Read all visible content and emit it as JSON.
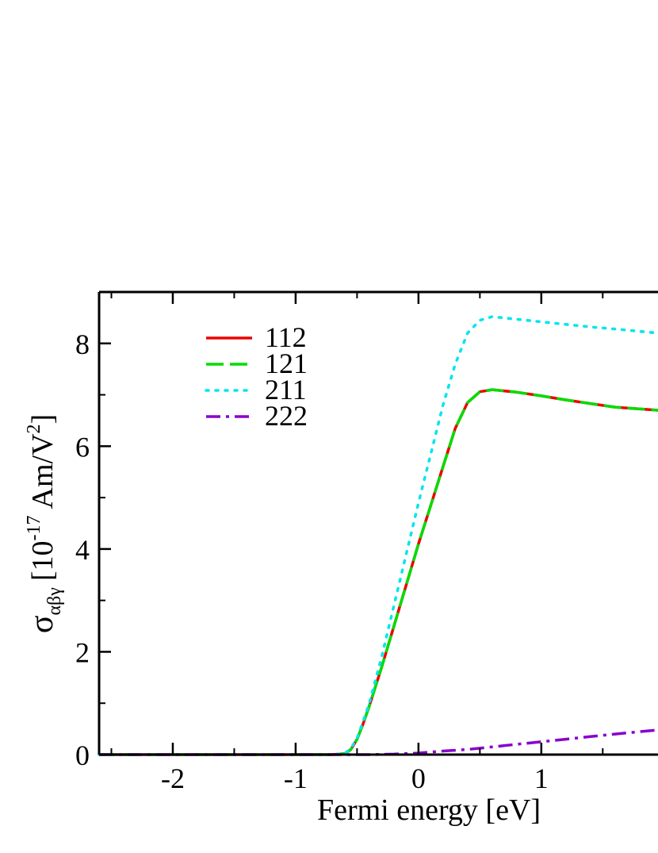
{
  "chart_data": {
    "type": "line",
    "xlabel": "Fermi energy [eV]",
    "ylabel": {
      "symbol": "σ",
      "subscript": "αβγ",
      "text": "[10",
      "exponent": "-17",
      "unit": "Am/V",
      "unit_exponent": "2",
      "close": "]"
    },
    "xlim": [
      -2.6,
      1.95
    ],
    "ylim": [
      0,
      9
    ],
    "xticks": [
      -2,
      -1,
      0,
      1
    ],
    "xtick_labels": [
      "-2",
      "-1",
      "0",
      "1"
    ],
    "yticks": [
      0,
      2,
      4,
      6,
      8
    ],
    "ytick_labels": [
      "0",
      "2",
      "4",
      "6",
      "8"
    ],
    "legend_position": "top-left",
    "series": [
      {
        "name": "112",
        "color": "#ee0000",
        "style": "solid",
        "points": [
          [
            -2.6,
            0
          ],
          [
            -0.7,
            0
          ],
          [
            -0.6,
            0.02
          ],
          [
            -0.55,
            0.1
          ],
          [
            -0.5,
            0.3
          ],
          [
            -0.45,
            0.6
          ],
          [
            -0.4,
            0.95
          ],
          [
            -0.3,
            1.7
          ],
          [
            -0.2,
            2.5
          ],
          [
            -0.1,
            3.3
          ],
          [
            0.0,
            4.1
          ],
          [
            0.1,
            4.85
          ],
          [
            0.2,
            5.6
          ],
          [
            0.3,
            6.35
          ],
          [
            0.4,
            6.85
          ],
          [
            0.5,
            7.06
          ],
          [
            0.6,
            7.1
          ],
          [
            0.8,
            7.05
          ],
          [
            1.0,
            6.98
          ],
          [
            1.2,
            6.9
          ],
          [
            1.4,
            6.83
          ],
          [
            1.6,
            6.76
          ],
          [
            1.95,
            6.7
          ]
        ]
      },
      {
        "name": "121",
        "color": "#00dd00",
        "style": "dashed",
        "points": [
          [
            -2.6,
            0
          ],
          [
            -0.7,
            0
          ],
          [
            -0.6,
            0.02
          ],
          [
            -0.55,
            0.1
          ],
          [
            -0.5,
            0.3
          ],
          [
            -0.45,
            0.6
          ],
          [
            -0.4,
            0.95
          ],
          [
            -0.3,
            1.7
          ],
          [
            -0.2,
            2.5
          ],
          [
            -0.1,
            3.3
          ],
          [
            0.0,
            4.1
          ],
          [
            0.1,
            4.85
          ],
          [
            0.2,
            5.6
          ],
          [
            0.3,
            6.35
          ],
          [
            0.4,
            6.85
          ],
          [
            0.5,
            7.06
          ],
          [
            0.6,
            7.1
          ],
          [
            0.8,
            7.05
          ],
          [
            1.0,
            6.98
          ],
          [
            1.2,
            6.9
          ],
          [
            1.4,
            6.83
          ],
          [
            1.6,
            6.76
          ],
          [
            1.95,
            6.7
          ]
        ]
      },
      {
        "name": "211",
        "color": "#00e5ee",
        "style": "dotted",
        "points": [
          [
            -2.6,
            0
          ],
          [
            -0.7,
            0
          ],
          [
            -0.6,
            0.02
          ],
          [
            -0.55,
            0.12
          ],
          [
            -0.5,
            0.32
          ],
          [
            -0.45,
            0.65
          ],
          [
            -0.4,
            1.0
          ],
          [
            -0.3,
            1.9
          ],
          [
            -0.2,
            2.9
          ],
          [
            -0.1,
            3.9
          ],
          [
            0.0,
            4.9
          ],
          [
            0.1,
            5.85
          ],
          [
            0.2,
            6.8
          ],
          [
            0.3,
            7.6
          ],
          [
            0.4,
            8.2
          ],
          [
            0.5,
            8.45
          ],
          [
            0.6,
            8.52
          ],
          [
            0.8,
            8.47
          ],
          [
            1.0,
            8.42
          ],
          [
            1.2,
            8.37
          ],
          [
            1.4,
            8.32
          ],
          [
            1.6,
            8.28
          ],
          [
            1.95,
            8.2
          ]
        ]
      },
      {
        "name": "222",
        "color": "#8800cc",
        "style": "dashdot",
        "points": [
          [
            -2.6,
            0
          ],
          [
            -0.4,
            0
          ],
          [
            -0.2,
            0.01
          ],
          [
            0.0,
            0.03
          ],
          [
            0.2,
            0.07
          ],
          [
            0.4,
            0.1
          ],
          [
            0.6,
            0.15
          ],
          [
            0.8,
            0.2
          ],
          [
            1.0,
            0.25
          ],
          [
            1.2,
            0.3
          ],
          [
            1.4,
            0.35
          ],
          [
            1.6,
            0.4
          ],
          [
            1.95,
            0.48
          ]
        ]
      }
    ]
  }
}
